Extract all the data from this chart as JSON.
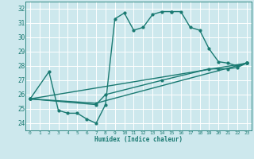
{
  "xlabel": "Humidex (Indice chaleur)",
  "bg_color": "#cde8ed",
  "line_color": "#1a7a72",
  "grid_color": "#b0d8de",
  "xlim": [
    -0.5,
    23.5
  ],
  "ylim": [
    23.5,
    32.5
  ],
  "xticks": [
    0,
    1,
    2,
    3,
    4,
    5,
    6,
    7,
    8,
    9,
    10,
    11,
    12,
    13,
    14,
    15,
    16,
    17,
    18,
    19,
    20,
    21,
    22,
    23
  ],
  "yticks": [
    24,
    25,
    26,
    27,
    28,
    29,
    30,
    31,
    32
  ],
  "curve1_x": [
    0,
    2,
    3,
    4,
    5,
    6,
    7,
    8,
    9,
    10,
    11,
    12,
    13,
    14,
    15,
    15,
    16,
    17,
    18,
    19,
    20,
    21,
    22,
    23
  ],
  "curve1_y": [
    25.7,
    27.6,
    24.9,
    24.7,
    24.7,
    24.3,
    24.0,
    25.3,
    31.3,
    31.7,
    30.5,
    30.7,
    31.6,
    31.8,
    31.8,
    31.8,
    31.8,
    30.7,
    30.5,
    29.2,
    28.3,
    28.2,
    28.0,
    28.2
  ],
  "curve2_x": [
    0,
    7,
    8,
    14,
    19,
    20,
    21,
    22,
    23
  ],
  "curve2_y": [
    25.7,
    25.3,
    26.0,
    27.0,
    27.8,
    27.8,
    27.8,
    27.9,
    28.2
  ],
  "curve3_x": [
    0,
    7,
    23
  ],
  "curve3_y": [
    25.7,
    25.4,
    28.2
  ],
  "curve4_x": [
    0,
    23
  ],
  "curve4_y": [
    25.7,
    28.2
  ]
}
